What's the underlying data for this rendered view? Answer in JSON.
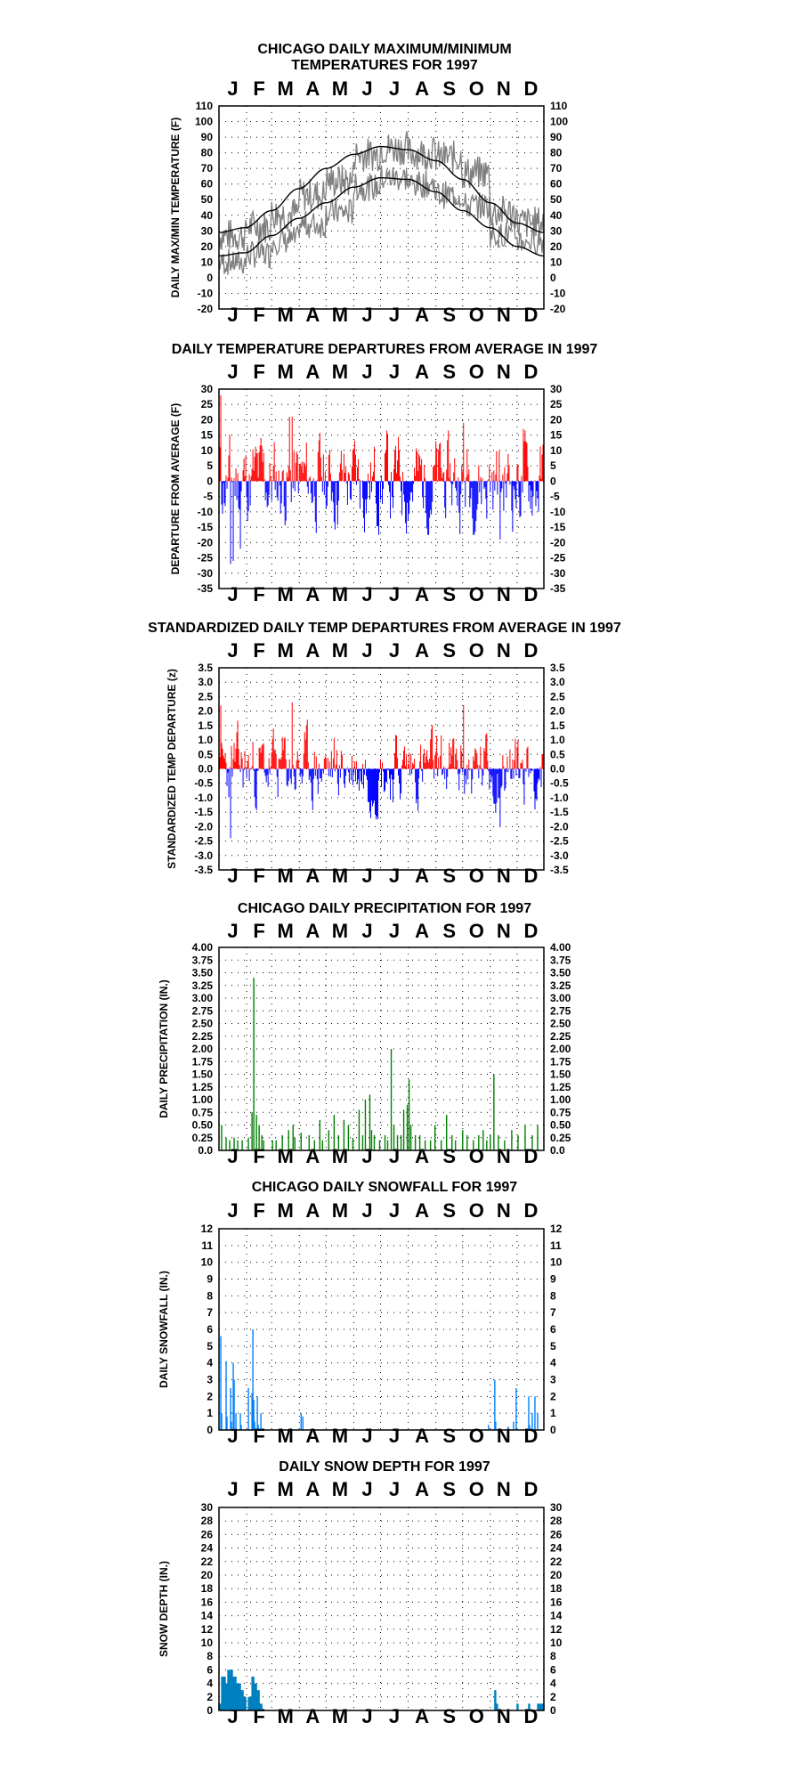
{
  "chart_data": [
    {
      "type": "line",
      "title": "CHICAGO DAILY MAXIMUM/MINIMUM",
      "subtitle": "TEMPERATURES FOR 1997",
      "ylabel": "DAILY MAX/MIN TEMPERATURE (F)",
      "months": [
        "J",
        "F",
        "M",
        "A",
        "M",
        "J",
        "J",
        "A",
        "S",
        "O",
        "N",
        "D"
      ],
      "ylim": [
        -20,
        110
      ],
      "yticks": [
        110,
        100,
        90,
        80,
        70,
        60,
        50,
        40,
        30,
        20,
        10,
        0,
        -10,
        -20
      ],
      "colors": {
        "observed": "#7f7f7f",
        "normal": "#000000"
      },
      "normal_max": {
        "day": [
          1,
          30,
          60,
          90,
          121,
          152,
          182,
          213,
          244,
          274,
          305,
          335,
          365
        ],
        "values": [
          29,
          32,
          43,
          57,
          70,
          79,
          84,
          82,
          75,
          63,
          48,
          35,
          29
        ]
      },
      "normal_min": {
        "day": [
          1,
          30,
          60,
          90,
          121,
          152,
          182,
          213,
          244,
          274,
          305,
          335,
          365
        ],
        "values": [
          14,
          16,
          27,
          38,
          48,
          58,
          64,
          63,
          55,
          43,
          32,
          20,
          14
        ]
      },
      "observed_max_monthly": [
        27,
        33,
        41,
        53,
        62,
        79,
        83,
        80,
        77,
        67,
        42,
        35
      ],
      "observed_min_monthly": [
        10,
        15,
        24,
        34,
        42,
        58,
        64,
        60,
        53,
        46,
        28,
        24
      ]
    },
    {
      "type": "bar",
      "title": "DAILY TEMPERATURE DEPARTURES FROM AVERAGE IN 1997",
      "ylabel": "DEPARTURE FROM AVERAGE (F)",
      "months": [
        "J",
        "F",
        "M",
        "A",
        "M",
        "J",
        "J",
        "A",
        "S",
        "O",
        "N",
        "D"
      ],
      "ylim": [
        -35,
        30
      ],
      "yticks": [
        30,
        25,
        20,
        15,
        10,
        5,
        0,
        -5,
        -10,
        -15,
        -20,
        -25,
        -30,
        -35
      ],
      "colors": {
        "positive": "#ff0000",
        "negative": "#0000ff"
      },
      "extremes": [
        {
          "day": 3,
          "value": 28
        },
        {
          "day": 14,
          "value": -27
        },
        {
          "day": 17,
          "value": -26
        },
        {
          "day": 25,
          "value": -22
        },
        {
          "day": 80,
          "value": 21
        },
        {
          "day": 83,
          "value": 21
        },
        {
          "day": 275,
          "value": 19
        },
        {
          "day": 316,
          "value": -19
        },
        {
          "day": 342,
          "value": 17
        }
      ]
    },
    {
      "type": "bar",
      "title": "STANDARDIZED DAILY TEMP DEPARTURES FROM AVERAGE IN 1997",
      "ylabel": "STANDARDIZED TEMP DEPARTURE (z)",
      "months": [
        "J",
        "F",
        "M",
        "A",
        "M",
        "J",
        "J",
        "A",
        "S",
        "O",
        "N",
        "D"
      ],
      "ylim": [
        -3.5,
        3.5
      ],
      "yticks": [
        "3.5",
        "3.0",
        "2.5",
        "2.0",
        "1.5",
        "1.0",
        "0.5",
        "0.0",
        "-0.5",
        "-1.0",
        "-1.5",
        "-2.0",
        "-2.5",
        "-3.0",
        "-3.5"
      ],
      "colors": {
        "positive": "#ff0000",
        "negative": "#0000ff"
      },
      "extremes": [
        {
          "day": 3,
          "value": 2.2
        },
        {
          "day": 14,
          "value": -2.4
        },
        {
          "day": 83,
          "value": 2.3
        },
        {
          "day": 275,
          "value": 2.2
        },
        {
          "day": 316,
          "value": -2.0
        }
      ]
    },
    {
      "type": "bar",
      "title": "CHICAGO DAILY PRECIPITATION FOR 1997",
      "ylabel": "DAILY PRECIPITATION (IN.)",
      "months": [
        "J",
        "F",
        "M",
        "A",
        "M",
        "J",
        "J",
        "A",
        "S",
        "O",
        "N",
        "D"
      ],
      "ylim": [
        0,
        4
      ],
      "yticks": [
        "4.00",
        "3.75",
        "3.50",
        "3.25",
        "3.00",
        "2.75",
        "2.50",
        "2.25",
        "2.00",
        "1.75",
        "1.50",
        "1.25",
        "1.00",
        "0.75",
        "0.50",
        "0.25",
        "0.0"
      ],
      "colors": {
        "bars": "#008000"
      },
      "days": [
        4,
        9,
        13,
        18,
        22,
        27,
        34,
        38,
        40,
        43,
        46,
        49,
        51,
        61,
        65,
        72,
        79,
        84,
        86,
        93,
        102,
        108,
        114,
        117,
        124,
        130,
        135,
        141,
        146,
        151,
        158,
        162,
        165,
        170,
        172,
        175,
        181,
        187,
        190,
        194,
        197,
        201,
        205,
        208,
        212,
        214,
        216,
        221,
        226,
        232,
        238,
        243,
        250,
        256,
        262,
        266,
        274,
        279,
        286,
        292,
        297,
        301,
        305,
        309,
        314,
        321,
        329,
        336,
        344,
        352,
        358
      ],
      "values": [
        0.5,
        0.25,
        0.2,
        0.25,
        0.2,
        0.2,
        0.25,
        0.75,
        3.4,
        0.7,
        0.5,
        0.3,
        0.2,
        0.2,
        0.2,
        0.3,
        0.4,
        0.5,
        0.25,
        0.35,
        0.3,
        0.2,
        0.6,
        0.2,
        0.4,
        0.7,
        0.3,
        0.6,
        0.5,
        0.25,
        0.8,
        0.3,
        1.0,
        1.1,
        0.4,
        0.3,
        0.2,
        0.3,
        0.2,
        2.0,
        0.5,
        0.3,
        0.3,
        0.8,
        0.9,
        1.4,
        0.5,
        0.3,
        0.3,
        0.2,
        0.2,
        0.5,
        0.2,
        0.7,
        0.3,
        0.2,
        0.4,
        0.3,
        0.2,
        0.3,
        0.4,
        0.2,
        0.3,
        1.5,
        0.3,
        0.2,
        0.4,
        0.3,
        0.5,
        0.3,
        0.5
      ]
    },
    {
      "type": "bar",
      "title": "CHICAGO DAILY SNOWFALL FOR 1997",
      "ylabel": "DAILY SNOWFALL (IN.)",
      "months": [
        "J",
        "F",
        "M",
        "A",
        "M",
        "J",
        "J",
        "A",
        "S",
        "O",
        "N",
        "D"
      ],
      "ylim": [
        0,
        12
      ],
      "yticks": [
        12,
        11,
        10,
        9,
        8,
        7,
        6,
        5,
        4,
        3,
        2,
        1,
        0
      ],
      "colors": {
        "bars": "#0080ff"
      },
      "days": [
        3,
        4,
        9,
        10,
        14,
        15,
        17,
        18,
        20,
        25,
        26,
        34,
        38,
        39,
        40,
        41,
        44,
        45,
        48,
        93,
        95,
        303,
        310,
        311,
        325,
        331,
        334,
        348,
        349,
        352,
        355,
        358
      ],
      "values": [
        5.6,
        1.0,
        4.1,
        0.8,
        2.5,
        0.5,
        4.0,
        3.0,
        1.0,
        1.0,
        0.3,
        2.5,
        2.2,
        6.0,
        1.8,
        0.5,
        2.0,
        0.3,
        1.0,
        1.0,
        0.8,
        0.3,
        3.0,
        0.5,
        0.2,
        0.5,
        2.5,
        2.0,
        0.3,
        1.0,
        2.0,
        1.0
      ]
    },
    {
      "type": "bar",
      "title": "DAILY SNOW DEPTH FOR 1997",
      "ylabel": "SNOW DEPTH (IN.)",
      "months": [
        "J",
        "F",
        "M",
        "A",
        "M",
        "J",
        "J",
        "A",
        "S",
        "O",
        "N",
        "D"
      ],
      "ylim": [
        0,
        30
      ],
      "yticks": [
        30,
        28,
        26,
        24,
        22,
        20,
        18,
        16,
        14,
        12,
        10,
        8,
        6,
        4,
        2,
        0
      ],
      "colors": {
        "bars": "#0080c0"
      },
      "depth_segments": [
        {
          "start": 1,
          "end": 3,
          "value": 1
        },
        {
          "start": 4,
          "end": 8,
          "value": 5
        },
        {
          "start": 9,
          "end": 10,
          "value": 4
        },
        {
          "start": 11,
          "end": 16,
          "value": 6
        },
        {
          "start": 17,
          "end": 20,
          "value": 5
        },
        {
          "start": 21,
          "end": 25,
          "value": 4
        },
        {
          "start": 26,
          "end": 28,
          "value": 3
        },
        {
          "start": 29,
          "end": 31,
          "value": 2
        },
        {
          "start": 34,
          "end": 37,
          "value": 2
        },
        {
          "start": 38,
          "end": 40,
          "value": 5
        },
        {
          "start": 41,
          "end": 43,
          "value": 4
        },
        {
          "start": 44,
          "end": 46,
          "value": 3
        },
        {
          "start": 47,
          "end": 49,
          "value": 1
        },
        {
          "start": 310,
          "end": 311,
          "value": 3
        },
        {
          "start": 312,
          "end": 313,
          "value": 1
        },
        {
          "start": 335,
          "end": 336,
          "value": 1
        },
        {
          "start": 348,
          "end": 349,
          "value": 1
        },
        {
          "start": 358,
          "end": 365,
          "value": 1
        }
      ]
    }
  ]
}
